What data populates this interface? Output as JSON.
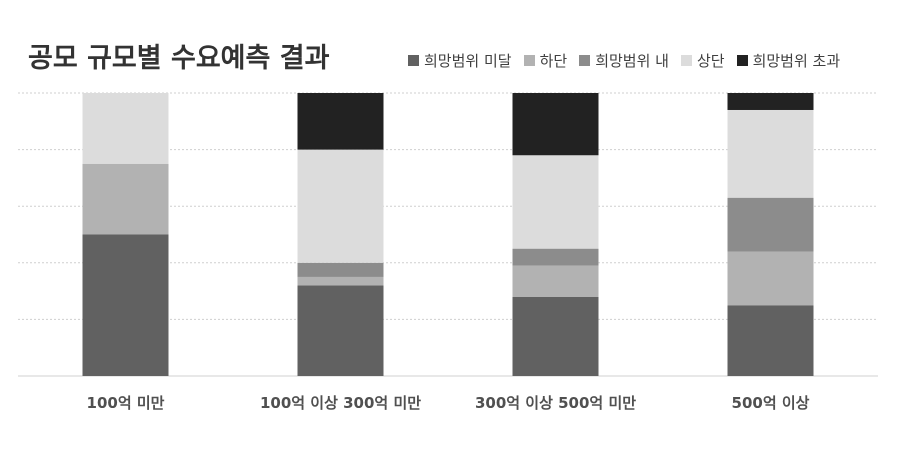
{
  "chart_data": {
    "type": "bar",
    "stacked": true,
    "normalized": true,
    "title": "공모 규모별 수요예측 결과",
    "xlabel": "",
    "ylabel": "",
    "ylim": [
      0,
      100
    ],
    "grid": true,
    "legend_position": "top-right",
    "categories": [
      "100억 미만",
      "100억 이상 300억 미만",
      "300억 이상 500억 미만",
      "500억 이상"
    ],
    "series": [
      {
        "name": "희망범위 미달",
        "color": "#616161",
        "values": [
          50,
          32,
          28,
          25
        ]
      },
      {
        "name": "하단",
        "color": "#b2b2b2",
        "values": [
          25,
          3,
          11,
          19
        ]
      },
      {
        "name": "희망범위 내",
        "color": "#8c8c8c",
        "values": [
          0,
          5,
          6,
          19
        ]
      },
      {
        "name": "상단",
        "color": "#dcdcdc",
        "values": [
          25,
          40,
          33,
          31
        ]
      },
      {
        "name": "희망범위 초과",
        "color": "#222222",
        "values": [
          0,
          20,
          22,
          6
        ]
      }
    ]
  }
}
